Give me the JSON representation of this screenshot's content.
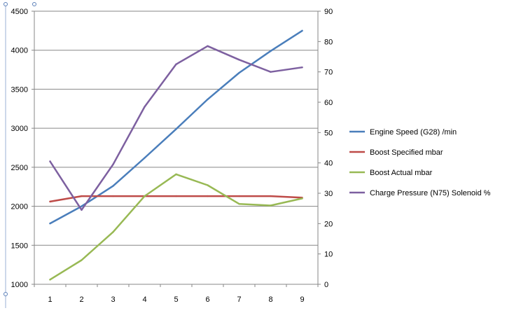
{
  "chart_data": {
    "type": "line",
    "categories": [
      "1",
      "2",
      "3",
      "4",
      "5",
      "6",
      "7",
      "8",
      "9"
    ],
    "series": [
      {
        "name": "Engine Speed (G28)  /min",
        "axis": "left",
        "color": "#4a7ebb",
        "values": [
          1780,
          2000,
          2260,
          2620,
          2990,
          3370,
          3710,
          3990,
          4250
        ]
      },
      {
        "name": "Boost Specified  mbar",
        "axis": "left",
        "color": "#be4b48",
        "values": [
          2060,
          2130,
          2130,
          2130,
          2130,
          2130,
          2130,
          2130,
          2110
        ]
      },
      {
        "name": "Boost Actual  mbar",
        "axis": "left",
        "color": "#98b954",
        "values": [
          1060,
          1310,
          1670,
          2130,
          2410,
          2270,
          2030,
          2010,
          2100
        ]
      },
      {
        "name": "Charge Pressure (N75) Solenoid  %",
        "axis": "right",
        "color": "#7d60a0",
        "values": [
          40.5,
          24.5,
          39.5,
          58.5,
          72.5,
          78.5,
          74,
          70,
          71.5
        ]
      }
    ],
    "y_left": {
      "ylim": [
        1000,
        4500
      ],
      "ticks": [
        "1000",
        "1500",
        "2000",
        "2500",
        "3000",
        "3500",
        "4000",
        "4500"
      ]
    },
    "y_right": {
      "ylim": [
        0,
        90
      ],
      "ticks": [
        "0",
        "10",
        "20",
        "30",
        "40",
        "50",
        "60",
        "70",
        "80",
        "90"
      ]
    },
    "title": "",
    "xlabel": "",
    "ylabel": "",
    "grid": true,
    "legend_position": "right"
  }
}
